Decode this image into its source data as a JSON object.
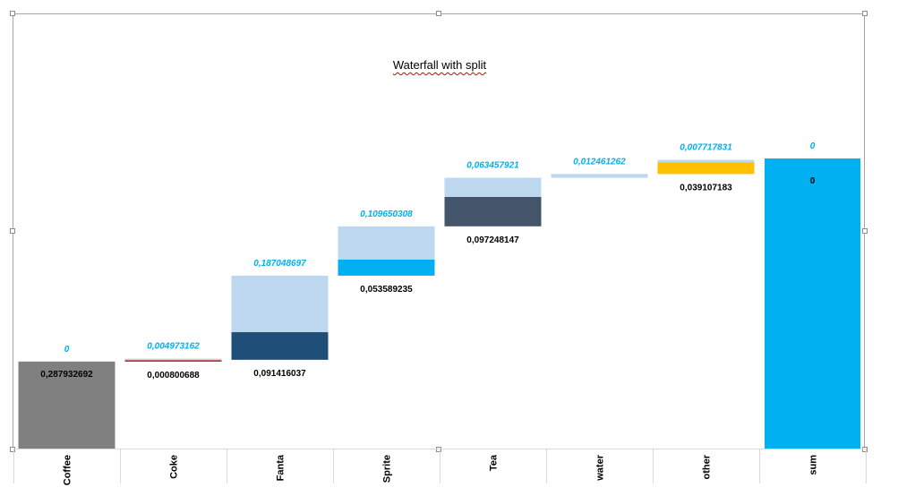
{
  "chart_data": {
    "type": "bar",
    "subtype": "stacked waterfall with split",
    "title": "Waterfall with split",
    "categories": [
      "Coffee",
      "Coke",
      "Fanta",
      "Sprite",
      "Tea",
      "water",
      "other",
      "sum"
    ],
    "series": [
      {
        "values": [
          0.287932692,
          0.000800688,
          0.091416037,
          0.053589235,
          0.097248147,
          0,
          0.039107183,
          0
        ],
        "colors": [
          "#808080",
          "#c00000",
          "#1f4e79",
          "#00b0f0",
          "#44546a",
          "#bdd7ee",
          "#ffc000",
          "#00b0f0"
        ],
        "label_color": "#000000"
      },
      {
        "values": [
          0,
          0.004973162,
          0.187048697,
          0.109650308,
          0.063457921,
          0.012461262,
          0.007717831,
          0
        ],
        "color": "#bdd7ee",
        "label_color": "#00b0f0"
      }
    ],
    "bar_labels": {
      "lower": [
        "0,287932692",
        "0,000800688",
        "0,091416037",
        "0,053589235",
        "0,097248147",
        "",
        "0,039107183",
        "0"
      ],
      "upper": [
        "0",
        "0,004973162",
        "0,187048697",
        "0,109650308",
        "0,063457921",
        "0,012461262",
        "0,007717831",
        "0"
      ]
    },
    "sum_value": 0.96,
    "ylim": [
      0,
      0.96
    ],
    "grid": false,
    "legend": "none"
  }
}
